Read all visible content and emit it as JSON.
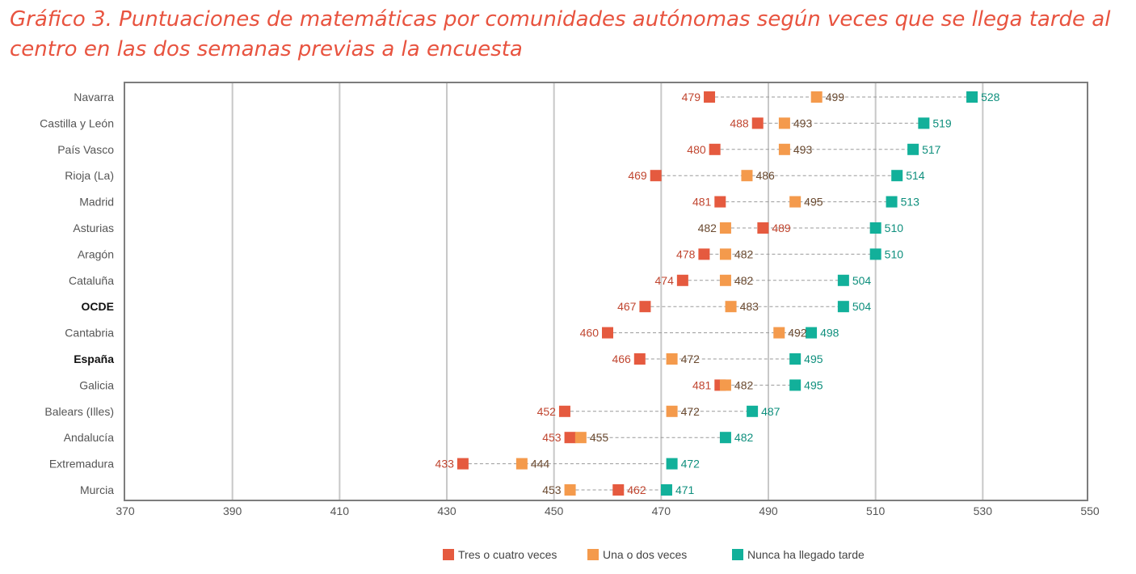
{
  "title": "Gráfico 3. Puntuaciones de matemáticas por comunidades autónomas según veces que se llega tarde al centro en las dos semanas previas a la encuesta",
  "chart_data": {
    "type": "scatter",
    "orientation": "horizontal-dot",
    "categories": [
      "Navarra",
      "Castilla y León",
      "País Vasco",
      "Rioja (La)",
      "Madrid",
      "Asturias",
      "Aragón",
      "Cataluña",
      "OCDE",
      "Cantabria",
      "España",
      "Galicia",
      "Balears (Illes)",
      "Andalucía",
      "Extremadura",
      "Murcia"
    ],
    "bold_categories": [
      "OCDE",
      "España"
    ],
    "series": [
      {
        "name": "Tres o cuatro veces",
        "color": "#e55a3f",
        "label_color": "#c0452f",
        "values": [
          479,
          488,
          480,
          469,
          481,
          489,
          478,
          474,
          467,
          460,
          466,
          481,
          452,
          453,
          433,
          462
        ]
      },
      {
        "name": "Una o dos veces",
        "color": "#f49a4c",
        "label_color": "#6b4a30",
        "values": [
          499,
          493,
          493,
          486,
          495,
          482,
          482,
          482,
          483,
          492,
          472,
          482,
          472,
          455,
          444,
          453
        ]
      },
      {
        "name": "Nunca ha llegado tarde",
        "color": "#12b09a",
        "label_color": "#0e8f7d",
        "values": [
          528,
          519,
          517,
          514,
          513,
          510,
          510,
          504,
          504,
          498,
          495,
          495,
          487,
          482,
          472,
          471
        ]
      }
    ],
    "xlim": [
      370,
      550
    ],
    "xticks": [
      "370",
      "390",
      "410",
      "430",
      "450",
      "470",
      "490",
      "510",
      "530",
      "550"
    ],
    "grid": true,
    "legend": "bottom"
  }
}
